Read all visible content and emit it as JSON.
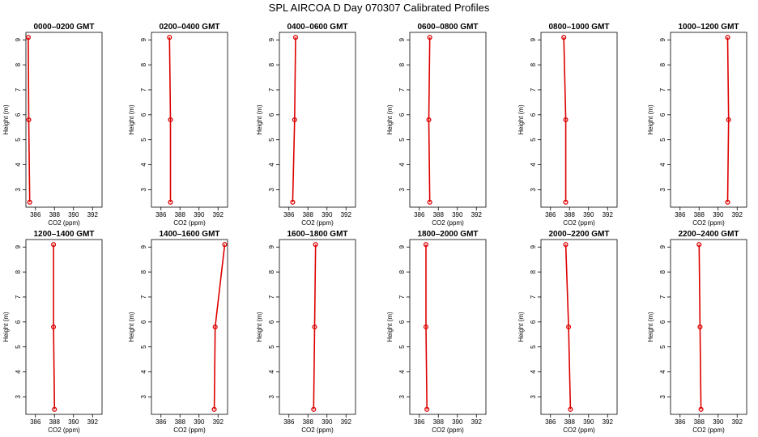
{
  "figure_title": "SPL AIRCOA D  Day 070307  Calibrated Profiles",
  "colors": {
    "profile": "#dd0000",
    "axis": "#000000"
  },
  "chart_data": [
    {
      "type": "line",
      "title": "0000–0200 GMT",
      "xlabel": "CO2 (ppm)",
      "ylabel": "Height (m)",
      "xlim": [
        385,
        393
      ],
      "ylim": [
        2.3,
        9.3
      ],
      "xticks": [
        386,
        388,
        390,
        392
      ],
      "yticks": [
        3,
        4,
        5,
        6,
        7,
        8,
        9
      ],
      "grid": false,
      "series": [
        {
          "x": [
            385.25,
            385.3,
            385.4
          ],
          "y": [
            9.1,
            5.8,
            2.5
          ]
        }
      ]
    },
    {
      "type": "line",
      "title": "0200–0400 GMT",
      "xlabel": "CO2 (ppm)",
      "ylabel": "Height (m)",
      "xlim": [
        385,
        393
      ],
      "ylim": [
        2.3,
        9.3
      ],
      "xticks": [
        386,
        388,
        390,
        392
      ],
      "yticks": [
        3,
        4,
        5,
        6,
        7,
        8,
        9
      ],
      "grid": false,
      "series": [
        {
          "x": [
            386.9,
            387.0,
            387.0
          ],
          "y": [
            9.1,
            5.8,
            2.5
          ]
        }
      ]
    },
    {
      "type": "line",
      "title": "0400–0600 GMT",
      "xlabel": "CO2 (ppm)",
      "ylabel": "Height (m)",
      "xlim": [
        385,
        393
      ],
      "ylim": [
        2.3,
        9.3
      ],
      "xticks": [
        386,
        388,
        390,
        392
      ],
      "yticks": [
        3,
        4,
        5,
        6,
        7,
        8,
        9
      ],
      "grid": false,
      "series": [
        {
          "x": [
            386.7,
            386.6,
            386.4
          ],
          "y": [
            9.1,
            5.8,
            2.5
          ]
        }
      ]
    },
    {
      "type": "line",
      "title": "0600–0800 GMT",
      "xlabel": "CO2 (ppm)",
      "ylabel": "Height (m)",
      "xlim": [
        385,
        393
      ],
      "ylim": [
        2.3,
        9.3
      ],
      "xticks": [
        386,
        388,
        390,
        392
      ],
      "yticks": [
        3,
        4,
        5,
        6,
        7,
        8,
        9
      ],
      "grid": false,
      "series": [
        {
          "x": [
            387.1,
            387.0,
            387.1
          ],
          "y": [
            9.1,
            5.8,
            2.5
          ]
        }
      ]
    },
    {
      "type": "line",
      "title": "0800–1000 GMT",
      "xlabel": "CO2 (ppm)",
      "ylabel": "Height (m)",
      "xlim": [
        385,
        393
      ],
      "ylim": [
        2.3,
        9.3
      ],
      "xticks": [
        386,
        388,
        390,
        392
      ],
      "yticks": [
        3,
        4,
        5,
        6,
        7,
        8,
        9
      ],
      "grid": false,
      "series": [
        {
          "x": [
            387.4,
            387.6,
            387.6
          ],
          "y": [
            9.1,
            5.8,
            2.5
          ]
        }
      ]
    },
    {
      "type": "line",
      "title": "1000–1200 GMT",
      "xlabel": "CO2 (ppm)",
      "ylabel": "Height (m)",
      "xlim": [
        385,
        393
      ],
      "ylim": [
        2.3,
        9.3
      ],
      "xticks": [
        386,
        388,
        390,
        392
      ],
      "yticks": [
        3,
        4,
        5,
        6,
        7,
        8,
        9
      ],
      "grid": false,
      "series": [
        {
          "x": [
            391.0,
            391.1,
            391.0
          ],
          "y": [
            9.1,
            5.8,
            2.5
          ]
        }
      ]
    },
    {
      "type": "line",
      "title": "1200–1400 GMT",
      "xlabel": "CO2 (ppm)",
      "ylabel": "Height (m)",
      "xlim": [
        385,
        393
      ],
      "ylim": [
        2.3,
        9.3
      ],
      "xticks": [
        386,
        388,
        390,
        392
      ],
      "yticks": [
        3,
        4,
        5,
        6,
        7,
        8,
        9
      ],
      "grid": false,
      "series": [
        {
          "x": [
            387.9,
            387.9,
            388.0
          ],
          "y": [
            9.1,
            5.8,
            2.5
          ]
        }
      ]
    },
    {
      "type": "line",
      "title": "1400–1600 GMT",
      "xlabel": "CO2 (ppm)",
      "ylabel": "Height (m)",
      "xlim": [
        385,
        393
      ],
      "ylim": [
        2.3,
        9.3
      ],
      "xticks": [
        386,
        388,
        390,
        392
      ],
      "yticks": [
        3,
        4,
        5,
        6,
        7,
        8,
        9
      ],
      "grid": false,
      "series": [
        {
          "x": [
            392.7,
            391.7,
            391.6
          ],
          "y": [
            9.1,
            5.8,
            2.5
          ]
        }
      ]
    },
    {
      "type": "line",
      "title": "1600–1800 GMT",
      "xlabel": "CO2 (ppm)",
      "ylabel": "Height (m)",
      "xlim": [
        385,
        393
      ],
      "ylim": [
        2.3,
        9.3
      ],
      "xticks": [
        386,
        388,
        390,
        392
      ],
      "yticks": [
        3,
        4,
        5,
        6,
        7,
        8,
        9
      ],
      "grid": false,
      "series": [
        {
          "x": [
            388.8,
            388.7,
            388.6
          ],
          "y": [
            9.1,
            5.8,
            2.5
          ]
        }
      ]
    },
    {
      "type": "line",
      "title": "1800–2000 GMT",
      "xlabel": "CO2 (ppm)",
      "ylabel": "Height (m)",
      "xlim": [
        385,
        393
      ],
      "ylim": [
        2.3,
        9.3
      ],
      "xticks": [
        386,
        388,
        390,
        392
      ],
      "yticks": [
        3,
        4,
        5,
        6,
        7,
        8,
        9
      ],
      "grid": false,
      "series": [
        {
          "x": [
            386.7,
            386.7,
            386.8
          ],
          "y": [
            9.1,
            5.8,
            2.5
          ]
        }
      ]
    },
    {
      "type": "line",
      "title": "2000–2200 GMT",
      "xlabel": "CO2 (ppm)",
      "ylabel": "Height (m)",
      "xlim": [
        385,
        393
      ],
      "ylim": [
        2.3,
        9.3
      ],
      "xticks": [
        386,
        388,
        390,
        392
      ],
      "yticks": [
        3,
        4,
        5,
        6,
        7,
        8,
        9
      ],
      "grid": false,
      "series": [
        {
          "x": [
            387.6,
            387.9,
            388.1
          ],
          "y": [
            9.1,
            5.8,
            2.5
          ]
        }
      ]
    },
    {
      "type": "line",
      "title": "2200–2400 GMT",
      "xlabel": "CO2 (ppm)",
      "ylabel": "Height (m)",
      "xlim": [
        385,
        393
      ],
      "ylim": [
        2.3,
        9.3
      ],
      "xticks": [
        386,
        388,
        390,
        392
      ],
      "yticks": [
        3,
        4,
        5,
        6,
        7,
        8,
        9
      ],
      "grid": false,
      "series": [
        {
          "x": [
            388.0,
            388.1,
            388.2
          ],
          "y": [
            9.1,
            5.8,
            2.5
          ]
        }
      ]
    }
  ]
}
